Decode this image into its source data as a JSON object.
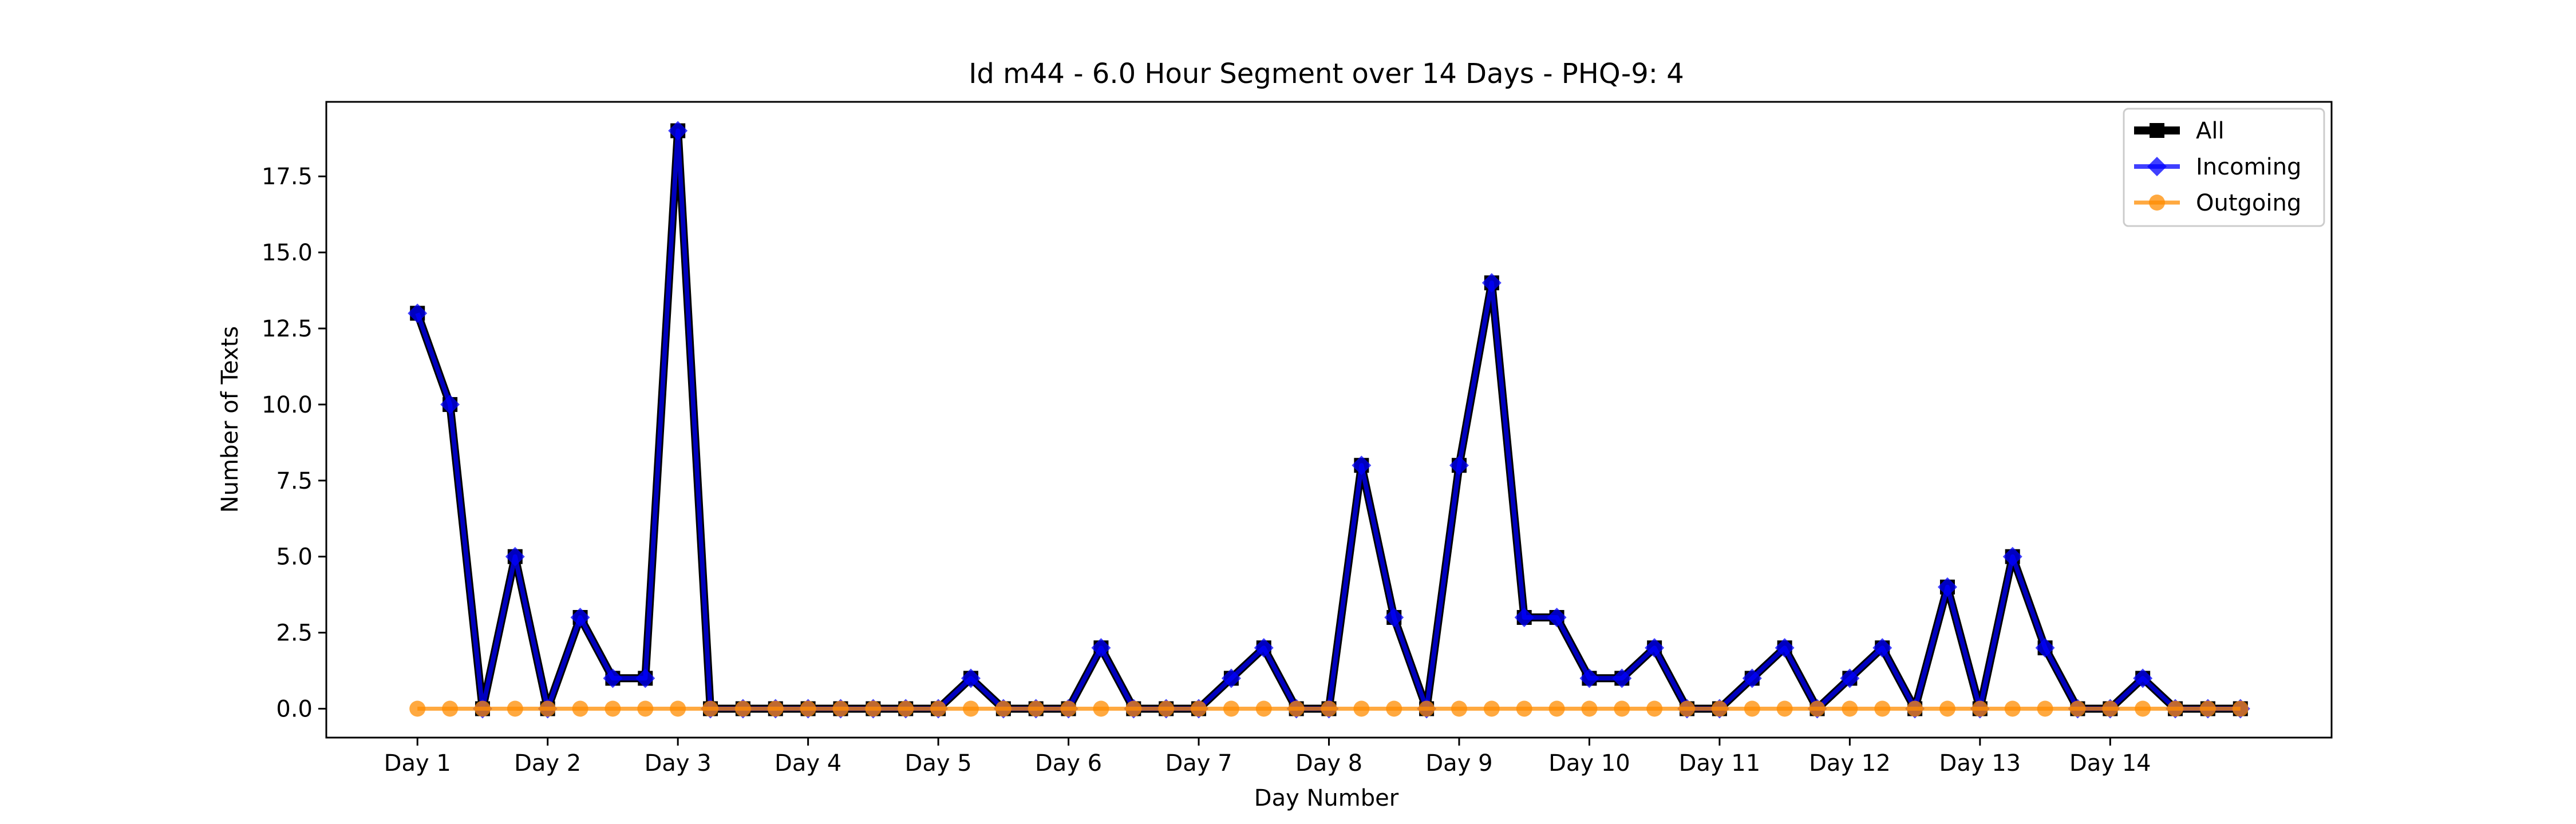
{
  "chart_data": {
    "type": "line",
    "title": "Id m44 - 6.0 Hour Segment over 14 Days - PHQ-9: 4",
    "xlabel": "Day Number",
    "ylabel": "Number of Texts",
    "x_tick_labels": [
      "Day 1",
      "Day 2",
      "Day 3",
      "Day 4",
      "Day 5",
      "Day 6",
      "Day 7",
      "Day 8",
      "Day 9",
      "Day 10",
      "Day 11",
      "Day 12",
      "Day 13",
      "Day 14"
    ],
    "y_tick_labels": [
      "0.0",
      "2.5",
      "5.0",
      "7.5",
      "10.0",
      "12.5",
      "15.0",
      "17.5"
    ],
    "ylim": [
      -0.95,
      19.95
    ],
    "grid": false,
    "legend_position": "top-right",
    "series": [
      {
        "name": "All",
        "color": "#000000",
        "marker": "square",
        "values": [
          13,
          10,
          0,
          5,
          0,
          3,
          1,
          1,
          19,
          0,
          0,
          0,
          0,
          0,
          0,
          0,
          0,
          1,
          0,
          0,
          0,
          2,
          0,
          0,
          0,
          1,
          2,
          0,
          0,
          8,
          3,
          0,
          8,
          14,
          3,
          3,
          1,
          1,
          2,
          0,
          0,
          1,
          2,
          0,
          1,
          2,
          0,
          4,
          0,
          5,
          2,
          0,
          0,
          1,
          0,
          0,
          0
        ]
      },
      {
        "name": "Incoming",
        "color": "#0000ff",
        "marker": "diamond",
        "values": [
          13,
          10,
          0,
          5,
          0,
          3,
          1,
          1,
          19,
          0,
          0,
          0,
          0,
          0,
          0,
          0,
          0,
          1,
          0,
          0,
          0,
          2,
          0,
          0,
          0,
          1,
          2,
          0,
          0,
          8,
          3,
          0,
          8,
          14,
          3,
          3,
          1,
          1,
          2,
          0,
          0,
          1,
          2,
          0,
          1,
          2,
          0,
          4,
          0,
          5,
          2,
          0,
          0,
          1,
          0,
          0,
          0
        ]
      },
      {
        "name": "Outgoing",
        "color": "#ff8c00",
        "marker": "circle",
        "values": [
          0,
          0,
          0,
          0,
          0,
          0,
          0,
          0,
          0,
          0,
          0,
          0,
          0,
          0,
          0,
          0,
          0,
          0,
          0,
          0,
          0,
          0,
          0,
          0,
          0,
          0,
          0,
          0,
          0,
          0,
          0,
          0,
          0,
          0,
          0,
          0,
          0,
          0,
          0,
          0,
          0,
          0,
          0,
          0,
          0,
          0,
          0,
          0,
          0,
          0,
          0,
          0,
          0,
          0,
          0,
          0,
          0
        ]
      }
    ]
  }
}
